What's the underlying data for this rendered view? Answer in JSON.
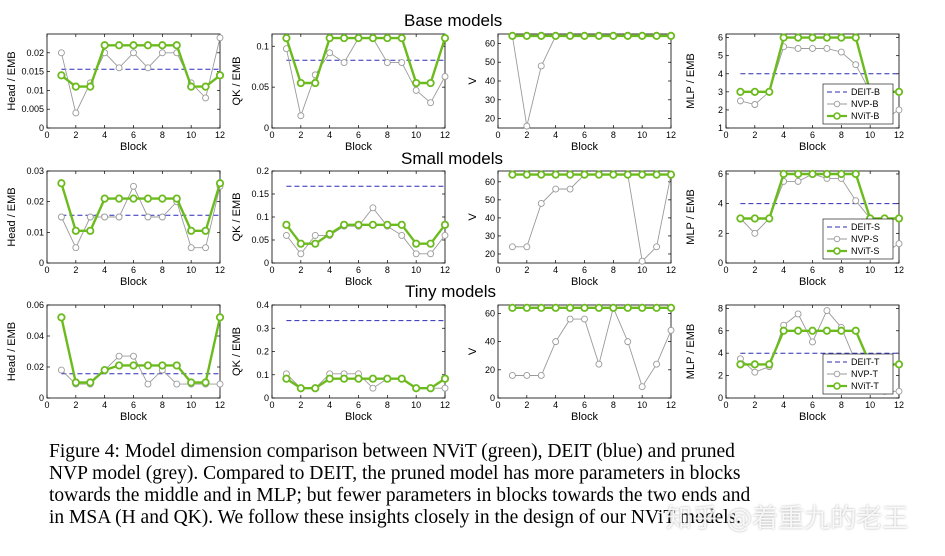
{
  "row_titles": [
    "Base models",
    "Small models",
    "Tiny models"
  ],
  "caption": {
    "lines": [
      "Figure 4: Model dimension comparison between NViT (green), DEIT (blue) and pruned",
      "NVP model (grey). Compared to DEIT, the pruned model has more parameters in blocks",
      "towards the middle and in MLP; but fewer parameters in blocks towards the two ends and",
      "in MSA (H and QK). We follow these insights closely in the design of our NViT models."
    ]
  },
  "watermark": "知乎 @着重九的老王",
  "colors": {
    "deit": "#2b2bb8",
    "nvp": "#9a9a9a",
    "nvit": "#6cbb1e",
    "axis": "#000000"
  },
  "chart_data": [
    {
      "id": "base-head",
      "type": "line",
      "xlabel": "Block",
      "ylabel": "Head / EMB",
      "xlim": [
        0,
        12
      ],
      "xticks": [
        0,
        2,
        4,
        6,
        8,
        10,
        12
      ],
      "ylim": [
        0,
        0.025
      ],
      "yticks": [
        "0",
        "0.005",
        "0.01",
        "0.015",
        "0.02"
      ],
      "x": [
        1,
        2,
        3,
        4,
        5,
        6,
        7,
        8,
        9,
        10,
        11,
        12
      ],
      "series": [
        {
          "name": "DEIT",
          "values": [
            0.0156,
            0.0156,
            0.0156,
            0.0156,
            0.0156,
            0.0156,
            0.0156,
            0.0156,
            0.0156,
            0.0156,
            0.0156,
            0.0156
          ]
        },
        {
          "name": "NVP",
          "values": [
            0.02,
            0.004,
            0.012,
            0.02,
            0.016,
            0.02,
            0.016,
            0.02,
            0.02,
            0.012,
            0.008,
            0.024
          ]
        },
        {
          "name": "NViT",
          "values": [
            0.014,
            0.011,
            0.011,
            0.022,
            0.022,
            0.022,
            0.022,
            0.022,
            0.022,
            0.011,
            0.011,
            0.014
          ]
        }
      ]
    },
    {
      "id": "base-qk",
      "type": "line",
      "xlabel": "Block",
      "ylabel": "QK / EMB",
      "xlim": [
        0,
        12
      ],
      "xticks": [
        0,
        2,
        4,
        6,
        8,
        10,
        12
      ],
      "ylim": [
        0,
        0.115
      ],
      "yticks": [
        "0",
        "0.05",
        "0.1"
      ],
      "x": [
        1,
        2,
        3,
        4,
        5,
        6,
        7,
        8,
        9,
        10,
        11,
        12
      ],
      "series": [
        {
          "name": "DEIT",
          "values": [
            0.083,
            0.083,
            0.083,
            0.083,
            0.083,
            0.083,
            0.083,
            0.083,
            0.083,
            0.083,
            0.083,
            0.083
          ]
        },
        {
          "name": "NVP",
          "values": [
            0.097,
            0.015,
            0.065,
            0.092,
            0.08,
            0.11,
            0.11,
            0.08,
            0.08,
            0.046,
            0.031,
            0.063
          ]
        },
        {
          "name": "NViT",
          "values": [
            0.11,
            0.055,
            0.055,
            0.11,
            0.11,
            0.11,
            0.11,
            0.11,
            0.11,
            0.055,
            0.055,
            0.11
          ]
        }
      ]
    },
    {
      "id": "base-v",
      "type": "line",
      "xlabel": "Block",
      "ylabel": "V",
      "xlim": [
        0,
        12
      ],
      "xticks": [
        0,
        2,
        4,
        6,
        8,
        10,
        12
      ],
      "ylim": [
        15,
        65
      ],
      "yticks": [
        "20",
        "30",
        "40",
        "50",
        "60"
      ],
      "x": [
        1,
        2,
        3,
        4,
        5,
        6,
        7,
        8,
        9,
        10,
        11,
        12
      ],
      "series": [
        {
          "name": "NVP",
          "values": [
            64,
            16,
            48,
            64,
            64,
            64,
            64,
            64,
            64,
            64,
            64,
            64
          ]
        },
        {
          "name": "NViT",
          "values": [
            64,
            64,
            64,
            64,
            64,
            64,
            64,
            64,
            64,
            64,
            64,
            64
          ]
        }
      ]
    },
    {
      "id": "base-mlp",
      "type": "line",
      "xlabel": "Block",
      "ylabel": "MLP / EMB",
      "xlim": [
        0,
        12
      ],
      "xticks": [
        0,
        2,
        4,
        6,
        8,
        10,
        12
      ],
      "ylim": [
        1,
        6.2
      ],
      "yticks": [
        "1",
        "2",
        "3",
        "4",
        "5",
        "6"
      ],
      "x": [
        1,
        2,
        3,
        4,
        5,
        6,
        7,
        8,
        9,
        10,
        11,
        12
      ],
      "legend": {
        "entries": [
          "DEIT-B",
          "NVP-B",
          "NViT-B"
        ],
        "position": "bottom-right"
      },
      "series": [
        {
          "name": "DEIT-B",
          "values": [
            4,
            4,
            4,
            4,
            4,
            4,
            4,
            4,
            4,
            4,
            4,
            4
          ]
        },
        {
          "name": "NVP-B",
          "values": [
            2.5,
            2.3,
            3.0,
            5.5,
            5.4,
            5.4,
            5.4,
            5.2,
            4.5,
            3.0,
            1.5,
            2.0
          ]
        },
        {
          "name": "NViT-B",
          "values": [
            3,
            3,
            3,
            6,
            6,
            6,
            6,
            6,
            6,
            3,
            3,
            3
          ]
        }
      ]
    },
    {
      "id": "small-head",
      "type": "line",
      "xlabel": "Block",
      "ylabel": "Head / EMB",
      "xlim": [
        0,
        12
      ],
      "xticks": [
        0,
        2,
        4,
        6,
        8,
        10,
        12
      ],
      "ylim": [
        0,
        0.03
      ],
      "yticks": [
        "0",
        "0.01",
        "0.02",
        "0.03"
      ],
      "x": [
        1,
        2,
        3,
        4,
        5,
        6,
        7,
        8,
        9,
        10,
        11,
        12
      ],
      "series": [
        {
          "name": "DEIT",
          "values": [
            0.0156,
            0.0156,
            0.0156,
            0.0156,
            0.0156,
            0.0156,
            0.0156,
            0.0156,
            0.0156,
            0.0156,
            0.0156,
            0.0156
          ]
        },
        {
          "name": "NVP",
          "values": [
            0.015,
            0.005,
            0.015,
            0.015,
            0.015,
            0.025,
            0.015,
            0.015,
            0.02,
            0.005,
            0.005,
            0.025
          ]
        },
        {
          "name": "NViT",
          "values": [
            0.026,
            0.0105,
            0.0105,
            0.021,
            0.021,
            0.021,
            0.021,
            0.021,
            0.021,
            0.0105,
            0.0105,
            0.026
          ]
        }
      ]
    },
    {
      "id": "small-qk",
      "type": "line",
      "xlabel": "Block",
      "ylabel": "QK / EMB",
      "xlim": [
        0,
        12
      ],
      "xticks": [
        0,
        2,
        4,
        6,
        8,
        10,
        12
      ],
      "ylim": [
        0,
        0.2
      ],
      "yticks": [
        "0",
        "0.05",
        "0.1",
        "0.15",
        "0.2"
      ],
      "x": [
        1,
        2,
        3,
        4,
        5,
        6,
        7,
        8,
        9,
        10,
        11,
        12
      ],
      "series": [
        {
          "name": "DEIT",
          "values": [
            0.167,
            0.167,
            0.167,
            0.167,
            0.167,
            0.167,
            0.167,
            0.167,
            0.167,
            0.167,
            0.167,
            0.167
          ]
        },
        {
          "name": "NVP",
          "values": [
            0.06,
            0.02,
            0.06,
            0.06,
            0.08,
            0.08,
            0.12,
            0.08,
            0.06,
            0.02,
            0.02,
            0.06
          ]
        },
        {
          "name": "NViT",
          "values": [
            0.083,
            0.042,
            0.042,
            0.063,
            0.083,
            0.083,
            0.083,
            0.083,
            0.083,
            0.042,
            0.042,
            0.083
          ]
        }
      ]
    },
    {
      "id": "small-v",
      "type": "line",
      "xlabel": "Block",
      "ylabel": "V",
      "xlim": [
        0,
        12
      ],
      "xticks": [
        0,
        2,
        4,
        6,
        8,
        10,
        12
      ],
      "ylim": [
        15,
        66
      ],
      "yticks": [
        "20",
        "30",
        "40",
        "50",
        "60"
      ],
      "x": [
        1,
        2,
        3,
        4,
        5,
        6,
        7,
        8,
        9,
        10,
        11,
        12
      ],
      "series": [
        {
          "name": "NVP",
          "values": [
            24,
            24,
            48,
            56,
            56,
            64,
            64,
            64,
            64,
            16,
            24,
            64
          ]
        },
        {
          "name": "NViT",
          "values": [
            64,
            64,
            64,
            64,
            64,
            64,
            64,
            64,
            64,
            64,
            64,
            64
          ]
        }
      ]
    },
    {
      "id": "small-mlp",
      "type": "line",
      "xlabel": "Block",
      "ylabel": "MLP / EMB",
      "xlim": [
        0,
        12
      ],
      "xticks": [
        0,
        2,
        4,
        6,
        8,
        10,
        12
      ],
      "ylim": [
        0,
        6.2
      ],
      "yticks": [
        "0",
        "2",
        "4",
        "6"
      ],
      "x": [
        1,
        2,
        3,
        4,
        5,
        6,
        7,
        8,
        9,
        10,
        11,
        12
      ],
      "legend": {
        "entries": [
          "DEIT-S",
          "NVP-S",
          "NViT-S"
        ],
        "position": "bottom-right"
      },
      "series": [
        {
          "name": "DEIT-S",
          "values": [
            4,
            4,
            4,
            4,
            4,
            4,
            4,
            4,
            4,
            4,
            4,
            4
          ]
        },
        {
          "name": "NVP-S",
          "values": [
            3.0,
            2.0,
            3.0,
            5.5,
            5.5,
            6.0,
            5.7,
            5.7,
            4.2,
            3.0,
            0.7,
            1.3
          ]
        },
        {
          "name": "NViT-S",
          "values": [
            3,
            3,
            3,
            6,
            6,
            6,
            6,
            6,
            6,
            3,
            3,
            3
          ]
        }
      ]
    },
    {
      "id": "tiny-head",
      "type": "line",
      "xlabel": "Block",
      "ylabel": "Head / EMB",
      "xlim": [
        0,
        12
      ],
      "xticks": [
        0,
        2,
        4,
        6,
        8,
        10,
        12
      ],
      "ylim": [
        0,
        0.06
      ],
      "yticks": [
        "0",
        "0.02",
        "0.04",
        "0.06"
      ],
      "x": [
        1,
        2,
        3,
        4,
        5,
        6,
        7,
        8,
        9,
        10,
        11,
        12
      ],
      "series": [
        {
          "name": "DEIT",
          "values": [
            0.0156,
            0.0156,
            0.0156,
            0.0156,
            0.0156,
            0.0156,
            0.0156,
            0.0156,
            0.0156,
            0.0156,
            0.0156,
            0.0156
          ]
        },
        {
          "name": "NVP",
          "values": [
            0.018,
            0.009,
            0.009,
            0.018,
            0.027,
            0.027,
            0.009,
            0.018,
            0.009,
            0.009,
            0.009,
            0.009
          ]
        },
        {
          "name": "NViT",
          "values": [
            0.052,
            0.01,
            0.01,
            0.018,
            0.021,
            0.021,
            0.021,
            0.021,
            0.021,
            0.01,
            0.01,
            0.052
          ]
        }
      ]
    },
    {
      "id": "tiny-qk",
      "type": "line",
      "xlabel": "Block",
      "ylabel": "QK / EMB",
      "xlim": [
        0,
        12
      ],
      "xticks": [
        0,
        2,
        4,
        6,
        8,
        10,
        12
      ],
      "ylim": [
        0,
        0.4
      ],
      "yticks": [
        "0",
        "0.1",
        "0.2",
        "0.3",
        "0.4"
      ],
      "x": [
        1,
        2,
        3,
        4,
        5,
        6,
        7,
        8,
        9,
        10,
        11,
        12
      ],
      "series": [
        {
          "name": "DEIT",
          "values": [
            0.333,
            0.333,
            0.333,
            0.333,
            0.333,
            0.333,
            0.333,
            0.333,
            0.333,
            0.333,
            0.333,
            0.333
          ]
        },
        {
          "name": "NVP",
          "values": [
            0.104,
            0.042,
            0.042,
            0.104,
            0.104,
            0.104,
            0.042,
            0.083,
            0.083,
            0.042,
            0.042,
            0.042
          ]
        },
        {
          "name": "NViT",
          "values": [
            0.083,
            0.042,
            0.042,
            0.083,
            0.083,
            0.083,
            0.083,
            0.083,
            0.083,
            0.042,
            0.042,
            0.083
          ]
        }
      ]
    },
    {
      "id": "tiny-v",
      "type": "line",
      "xlabel": "Block",
      "ylabel": "V",
      "xlim": [
        0,
        12
      ],
      "xticks": [
        0,
        2,
        4,
        6,
        8,
        10,
        12
      ],
      "ylim": [
        0,
        66
      ],
      "yticks": [
        "0",
        "20",
        "40",
        "60"
      ],
      "x": [
        1,
        2,
        3,
        4,
        5,
        6,
        7,
        8,
        9,
        10,
        11,
        12
      ],
      "series": [
        {
          "name": "NVP",
          "values": [
            16,
            16,
            16,
            40,
            56,
            56,
            24,
            64,
            40,
            8,
            24,
            48
          ]
        },
        {
          "name": "NViT",
          "values": [
            64,
            64,
            64,
            64,
            64,
            64,
            64,
            64,
            64,
            64,
            64,
            64
          ]
        }
      ]
    },
    {
      "id": "tiny-mlp",
      "type": "line",
      "xlabel": "Block",
      "ylabel": "MLP / EMB",
      "xlim": [
        0,
        12
      ],
      "xticks": [
        0,
        2,
        4,
        6,
        8,
        10,
        12
      ],
      "ylim": [
        0,
        8.3
      ],
      "yticks": [
        "0",
        "2",
        "4",
        "6",
        "8"
      ],
      "x": [
        1,
        2,
        3,
        4,
        5,
        6,
        7,
        8,
        9,
        10,
        11,
        12
      ],
      "legend": {
        "entries": [
          "DEIT-T",
          "NVP-T",
          "NViT-T"
        ],
        "position": "bottom-right"
      },
      "series": [
        {
          "name": "DEIT-T",
          "values": [
            4,
            4,
            4,
            4,
            4,
            4,
            4,
            4,
            4,
            4,
            4,
            4
          ]
        },
        {
          "name": "NVP-T",
          "values": [
            3.5,
            2.3,
            2.8,
            6.5,
            7.5,
            5.0,
            7.8,
            6.3,
            3.2,
            3.5,
            0.6,
            0.6
          ]
        },
        {
          "name": "NViT-T",
          "values": [
            3,
            3,
            3,
            6,
            6,
            6,
            6,
            6,
            6,
            3,
            3,
            3
          ]
        }
      ]
    }
  ]
}
